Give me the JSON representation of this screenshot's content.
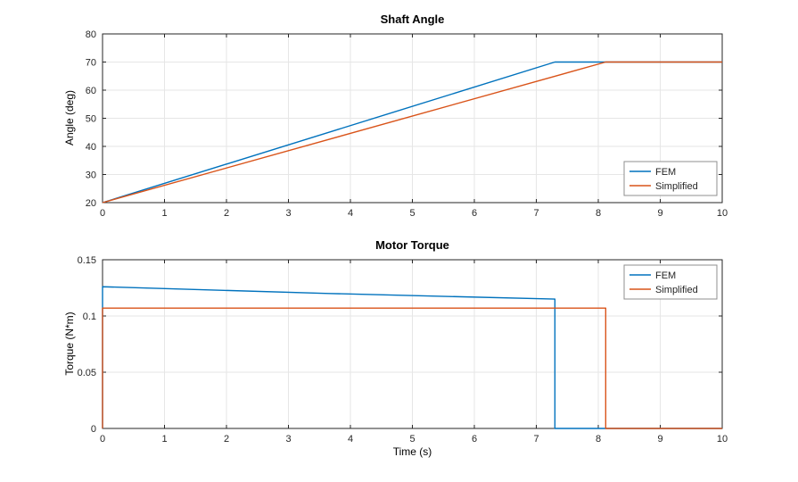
{
  "colors": {
    "fem": "#0072BD",
    "simplified": "#D95319",
    "axis": "#262626",
    "grid": "#e6e6e6",
    "legend_border": "#8f8f8f",
    "background": "#ffffff"
  },
  "chart_data": [
    {
      "type": "line",
      "title": "Shaft Angle",
      "xlabel": "",
      "ylabel": "Angle (deg)",
      "xlim": [
        0,
        10
      ],
      "ylim": [
        20,
        80
      ],
      "xticks": [
        0,
        1,
        2,
        3,
        4,
        5,
        6,
        7,
        8,
        9,
        10
      ],
      "yticks": [
        20,
        30,
        40,
        50,
        60,
        70,
        80
      ],
      "grid": true,
      "legend": {
        "position": "bottom-right",
        "entries": [
          "FEM",
          "Simplified"
        ]
      },
      "series": [
        {
          "name": "FEM",
          "color": "#0072BD",
          "x": [
            0,
            7.3,
            10
          ],
          "y": [
            20,
            70,
            70
          ]
        },
        {
          "name": "Simplified",
          "color": "#D95319",
          "x": [
            0,
            8.12,
            10
          ],
          "y": [
            20,
            70,
            70
          ]
        }
      ]
    },
    {
      "type": "line",
      "title": "Motor Torque",
      "xlabel": "Time (s)",
      "ylabel": "Torque (N*m)",
      "xlim": [
        0,
        10
      ],
      "ylim": [
        0,
        0.15
      ],
      "xticks": [
        0,
        1,
        2,
        3,
        4,
        5,
        6,
        7,
        8,
        9,
        10
      ],
      "yticks": [
        0,
        0.05,
        0.1,
        0.15
      ],
      "grid": true,
      "legend": {
        "position": "top-right",
        "entries": [
          "FEM",
          "Simplified"
        ]
      },
      "series": [
        {
          "name": "FEM",
          "color": "#0072BD",
          "x": [
            0,
            0,
            3.65,
            7.3,
            7.3,
            10
          ],
          "y": [
            0,
            0.126,
            0.12,
            0.115,
            0,
            0
          ]
        },
        {
          "name": "Simplified",
          "color": "#D95319",
          "x": [
            0,
            0,
            8.12,
            8.12,
            10
          ],
          "y": [
            0,
            0.107,
            0.107,
            0,
            0
          ]
        }
      ]
    }
  ]
}
